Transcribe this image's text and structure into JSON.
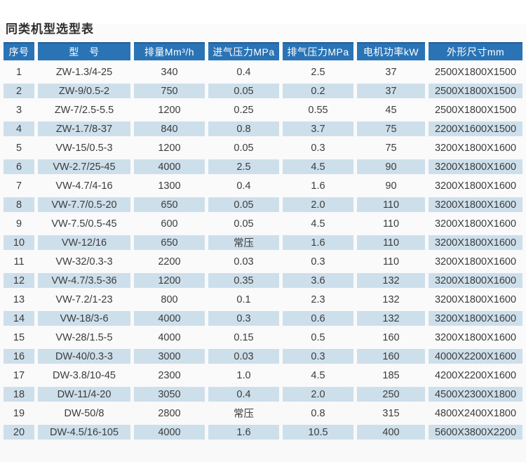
{
  "page": {
    "title": "同类机型选型表"
  },
  "colors": {
    "header_bg": "#2a74b6",
    "header_top_edge": "#1f5d9a",
    "header_text": "#ffffff",
    "even_row_bg": "#cddfeb",
    "odd_row_bg": "#fcfcfc",
    "body_text": "#3c3c3c",
    "title_text": "#2e2e2e"
  },
  "table": {
    "columns": [
      {
        "key": "index",
        "label": "序号"
      },
      {
        "key": "model",
        "label": "型　号"
      },
      {
        "key": "displacement",
        "label": "排量Mm³/h"
      },
      {
        "key": "intake",
        "label": "进气压力MPa"
      },
      {
        "key": "exhaust",
        "label": "排气压力MPa"
      },
      {
        "key": "power",
        "label": "电机功率kW"
      },
      {
        "key": "dimensions",
        "label": "外形尺寸mm"
      }
    ],
    "rows": [
      [
        "1",
        "ZW-1.3/4-25",
        "340",
        "0.4",
        "2.5",
        "37",
        "2500X1800X1500"
      ],
      [
        "2",
        "ZW-9/0.5-2",
        "750",
        "0.05",
        "0.2",
        "37",
        "2500X1800X1500"
      ],
      [
        "3",
        "ZW-7/2.5-5.5",
        "1200",
        "0.25",
        "0.55",
        "45",
        "2500X1800X1500"
      ],
      [
        "4",
        "ZW-1.7/8-37",
        "840",
        "0.8",
        "3.7",
        "75",
        "2200X1600X1500"
      ],
      [
        "5",
        "VW-15/0.5-3",
        "1200",
        "0.05",
        "0.3",
        "75",
        "3200X1800X1600"
      ],
      [
        "6",
        "VW-2.7/25-45",
        "4000",
        "2.5",
        "4.5",
        "90",
        "3200X1800X1600"
      ],
      [
        "7",
        "VW-4.7/4-16",
        "1300",
        "0.4",
        "1.6",
        "90",
        "3200X1800X1600"
      ],
      [
        "8",
        "VW-7.7/0.5-20",
        "650",
        "0.05",
        "2.0",
        "110",
        "3200X1800X1600"
      ],
      [
        "9",
        "VW-7.5/0.5-45",
        "600",
        "0.05",
        "4.5",
        "110",
        "3200X1800X1600"
      ],
      [
        "10",
        "VW-12/16",
        "650",
        "常压",
        "1.6",
        "110",
        "3200X1800X1600"
      ],
      [
        "11",
        "VW-32/0.3-3",
        "2200",
        "0.03",
        "0.3",
        "110",
        "3200X1800X1600"
      ],
      [
        "12",
        "VW-4.7/3.5-36",
        "1200",
        "0.35",
        "3.6",
        "132",
        "3200X1800X1600"
      ],
      [
        "13",
        "VW-7.2/1-23",
        "800",
        "0.1",
        "2.3",
        "132",
        "3200X1800X1600"
      ],
      [
        "14",
        "VW-18/3-6",
        "4000",
        "0.3",
        "0.6",
        "132",
        "3200X1800X1600"
      ],
      [
        "15",
        "VW-28/1.5-5",
        "4000",
        "0.15",
        "0.5",
        "160",
        "3200X1800X1600"
      ],
      [
        "16",
        "DW-40/0.3-3",
        "3000",
        "0.03",
        "0.3",
        "160",
        "4000X2200X1600"
      ],
      [
        "17",
        "DW-3.8/10-45",
        "2300",
        "1.0",
        "4.5",
        "185",
        "4200X2200X1600"
      ],
      [
        "18",
        "DW-11/4-20",
        "3050",
        "0.4",
        "2.0",
        "250",
        "4500X2300X1800"
      ],
      [
        "19",
        "DW-50/8",
        "2800",
        "常压",
        "0.8",
        "315",
        "4800X2400X1800"
      ],
      [
        "20",
        "DW-4.5/16-105",
        "4000",
        "1.6",
        "10.5",
        "400",
        "5600X3800X2200"
      ]
    ]
  }
}
